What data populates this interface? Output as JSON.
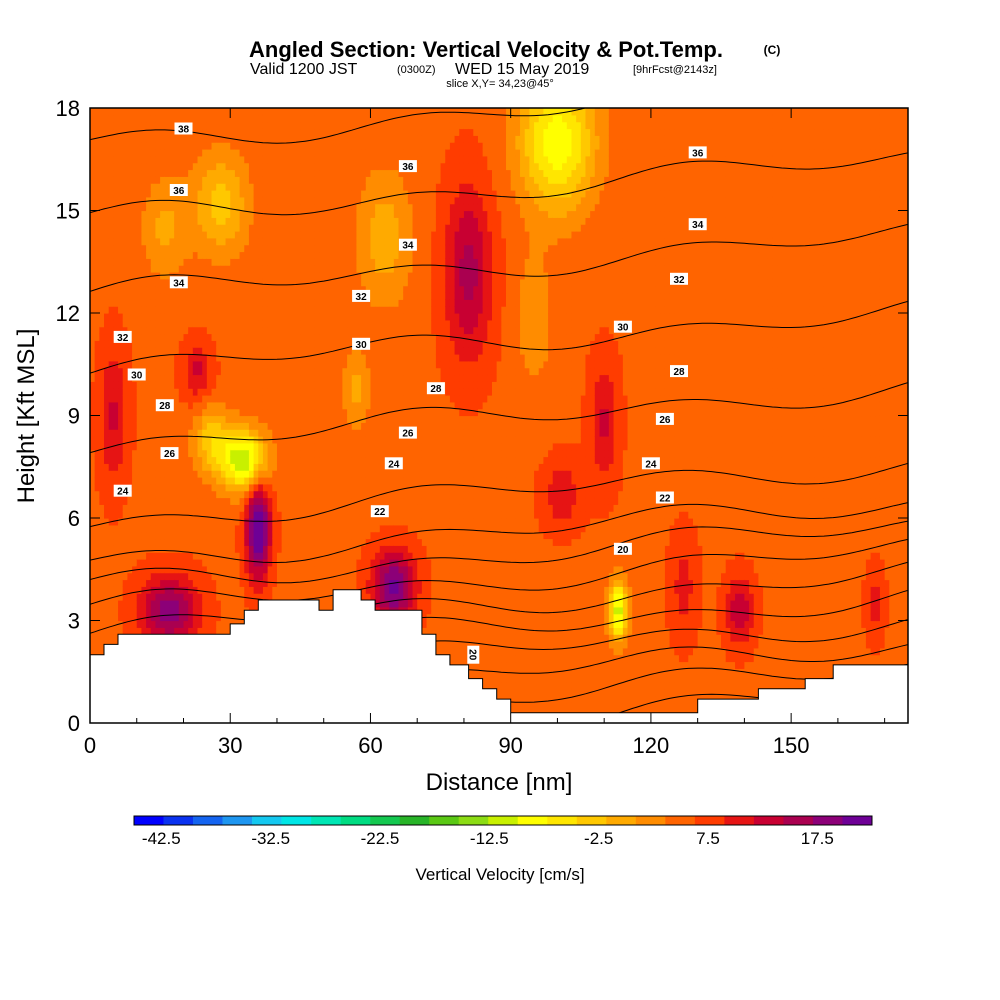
{
  "title": {
    "main": "Angled Section: Vertical Velocity & Pot.Temp.",
    "main_unit": "(C)",
    "valid_prefix": "Valid 1200 JST",
    "valid_utc": "(0300Z)",
    "valid_date": "WED 15 May 2019",
    "forecast": "[9hrFcst@2143z]",
    "slice": "slice X,Y= 34,23@45°"
  },
  "colors": {
    "terrain": "#ffffff",
    "contour": "#000000",
    "palette": [
      "#0000ff",
      "#0a32f0",
      "#1464f0",
      "#1e96f0",
      "#14c8f0",
      "#00e6e6",
      "#00e6b4",
      "#00dc82",
      "#14c850",
      "#28b428",
      "#5ac814",
      "#8cdc14",
      "#c8f000",
      "#ffff00",
      "#ffe600",
      "#ffc800",
      "#ffaa00",
      "#ff8c00",
      "#ff6400",
      "#ff3c00",
      "#e61414",
      "#c80032",
      "#aa0050",
      "#8c0078",
      "#6e0096"
    ]
  },
  "chart_data": {
    "type": "heatmap",
    "title": "Angled Section: Vertical Velocity & Pot.Temp.",
    "xlabel": "Distance [nm]",
    "ylabel": "Height [Kft MSL]",
    "xlim": [
      0,
      175
    ],
    "ylim": [
      0,
      18
    ],
    "x_ticks": [
      0,
      30,
      60,
      90,
      120,
      150
    ],
    "y_ticks": [
      0,
      3,
      6,
      9,
      12,
      15,
      18
    ],
    "x_tick_labels": [
      "0",
      "30",
      "60",
      "90",
      "120",
      "150"
    ],
    "y_tick_labels": [
      "0",
      "3",
      "6",
      "9",
      "12",
      "15",
      "18"
    ],
    "colorbar": {
      "title": "Vertical Velocity [cm/s]",
      "min": -45,
      "max": 22.5,
      "step": 2.5,
      "labels": [
        "-42.5",
        "-32.5",
        "-22.5",
        "-12.5",
        "-2.5",
        "7.5",
        "17.5"
      ],
      "label_values": [
        -42.5,
        -32.5,
        -22.5,
        -12.5,
        -2.5,
        7.5,
        17.5
      ]
    },
    "field": {
      "background": 2,
      "features": [
        {
          "x": 17,
          "y": 3.3,
          "sx": 6,
          "sy": 1.0,
          "amp": 12
        },
        {
          "x": 36,
          "y": 5.7,
          "sx": 2.5,
          "sy": 1.4,
          "amp": 17
        },
        {
          "x": 65,
          "y": 4.0,
          "sx": 4.5,
          "sy": 1.0,
          "amp": 14
        },
        {
          "x": 81,
          "y": 13.2,
          "sx": 5,
          "sy": 2.5,
          "amp": 9
        },
        {
          "x": 23,
          "y": 10.3,
          "sx": 3,
          "sy": 0.9,
          "amp": 6
        },
        {
          "x": 5,
          "y": 9.0,
          "sx": 3,
          "sy": 2.0,
          "amp": 6
        },
        {
          "x": 110,
          "y": 8.8,
          "sx": 3,
          "sy": 1.8,
          "amp": 6
        },
        {
          "x": 101,
          "y": 6.7,
          "sx": 4,
          "sy": 1.0,
          "amp": 5
        },
        {
          "x": 139,
          "y": 3.3,
          "sx": 3,
          "sy": 1.0,
          "amp": 8
        },
        {
          "x": 127,
          "y": 4.0,
          "sx": 3,
          "sy": 1.5,
          "amp": 4
        },
        {
          "x": 168,
          "y": 3.5,
          "sx": 2,
          "sy": 1.0,
          "amp": 4
        },
        {
          "x": 33,
          "y": 7.7,
          "sx": 5,
          "sy": 0.9,
          "amp": -17
        },
        {
          "x": 26,
          "y": 8.3,
          "sx": 4,
          "sy": 1.0,
          "amp": -8
        },
        {
          "x": 100,
          "y": 17.0,
          "sx": 8,
          "sy": 2.0,
          "amp": -14
        },
        {
          "x": 113,
          "y": 3.3,
          "sx": 2,
          "sy": 0.9,
          "amp": -16
        },
        {
          "x": 28,
          "y": 15.2,
          "sx": 6,
          "sy": 1.5,
          "amp": -8
        },
        {
          "x": 63,
          "y": 14.2,
          "sx": 6,
          "sy": 2.0,
          "amp": -6
        },
        {
          "x": 16,
          "y": 14.5,
          "sx": 5,
          "sy": 1.5,
          "amp": -5
        },
        {
          "x": 95,
          "y": 11.8,
          "sx": 4,
          "sy": 2.0,
          "amp": -4
        },
        {
          "x": 57,
          "y": 9.8,
          "sx": 3,
          "sy": 1.2,
          "amp": -5
        }
      ]
    },
    "terrain": [
      [
        0,
        2.0
      ],
      [
        3,
        2.0
      ],
      [
        3,
        2.3
      ],
      [
        6,
        2.3
      ],
      [
        6,
        2.6
      ],
      [
        30,
        2.6
      ],
      [
        30,
        2.9
      ],
      [
        33,
        2.9
      ],
      [
        33,
        3.3
      ],
      [
        36,
        3.3
      ],
      [
        36,
        3.6
      ],
      [
        49,
        3.6
      ],
      [
        49,
        3.3
      ],
      [
        52,
        3.3
      ],
      [
        52,
        3.9
      ],
      [
        58,
        3.9
      ],
      [
        58,
        3.6
      ],
      [
        61,
        3.6
      ],
      [
        61,
        3.3
      ],
      [
        71,
        3.3
      ],
      [
        71,
        2.6
      ],
      [
        74,
        2.6
      ],
      [
        74,
        2.0
      ],
      [
        77,
        2.0
      ],
      [
        77,
        1.7
      ],
      [
        81,
        1.7
      ],
      [
        81,
        1.3
      ],
      [
        84,
        1.3
      ],
      [
        84,
        1.0
      ],
      [
        87,
        1.0
      ],
      [
        87,
        0.7
      ],
      [
        90,
        0.7
      ],
      [
        90,
        0.3
      ],
      [
        130,
        0.3
      ],
      [
        130,
        0.7
      ],
      [
        143,
        0.7
      ],
      [
        143,
        1.0
      ],
      [
        153,
        1.0
      ],
      [
        153,
        1.3
      ],
      [
        159,
        1.3
      ],
      [
        159,
        1.7
      ],
      [
        175,
        1.7
      ]
    ],
    "contour_levels": [
      20,
      21,
      22,
      23,
      24,
      25,
      26,
      27,
      28,
      29,
      30,
      31,
      32,
      33,
      34,
      35,
      36,
      37,
      38
    ],
    "theta_model": {
      "base": 20,
      "k1": 1.45,
      "k2": 0.45,
      "h0": 6
    },
    "contour_labels": [
      {
        "x": 20,
        "y": 17.4,
        "text": "38"
      },
      {
        "x": 19,
        "y": 15.6,
        "text": "36"
      },
      {
        "x": 68,
        "y": 16.3,
        "text": "36"
      },
      {
        "x": 130,
        "y": 16.7,
        "text": "36"
      },
      {
        "x": 19,
        "y": 12.9,
        "text": "34"
      },
      {
        "x": 68,
        "y": 14.0,
        "text": "34"
      },
      {
        "x": 130,
        "y": 14.6,
        "text": "34"
      },
      {
        "x": 7,
        "y": 11.3,
        "text": "32"
      },
      {
        "x": 58,
        "y": 12.5,
        "text": "32"
      },
      {
        "x": 126,
        "y": 13.0,
        "text": "32"
      },
      {
        "x": 10,
        "y": 10.2,
        "text": "30"
      },
      {
        "x": 58,
        "y": 11.1,
        "text": "30"
      },
      {
        "x": 114,
        "y": 11.6,
        "text": "30"
      },
      {
        "x": 16,
        "y": 9.3,
        "text": "28"
      },
      {
        "x": 74,
        "y": 9.8,
        "text": "28"
      },
      {
        "x": 126,
        "y": 10.3,
        "text": "28"
      },
      {
        "x": 17,
        "y": 7.9,
        "text": "26"
      },
      {
        "x": 68,
        "y": 8.5,
        "text": "26"
      },
      {
        "x": 123,
        "y": 8.9,
        "text": "26"
      },
      {
        "x": 7,
        "y": 6.8,
        "text": "24"
      },
      {
        "x": 65,
        "y": 7.6,
        "text": "24"
      },
      {
        "x": 120,
        "y": 7.6,
        "text": "24"
      },
      {
        "x": 62,
        "y": 6.2,
        "text": "22"
      },
      {
        "x": 123,
        "y": 6.6,
        "text": "22"
      },
      {
        "x": 114,
        "y": 5.1,
        "text": "20"
      },
      {
        "x": 82,
        "y": 2.0,
        "text": "20",
        "rotate": 90
      }
    ]
  }
}
